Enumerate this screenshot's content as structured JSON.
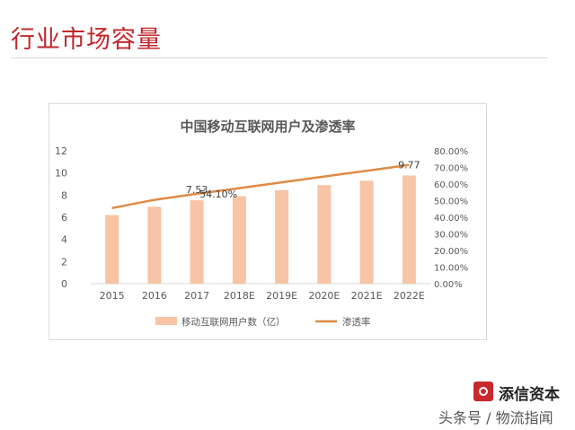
{
  "page": {
    "title": "行业市场容量",
    "brand": "添信资本",
    "watermark": "头条号 / 物流指闻"
  },
  "colors": {
    "title_red": "#c0272d",
    "bar": "#f7c4a5",
    "line": "#e08a45",
    "text": "#595959",
    "axis": "#d9d9d9"
  },
  "chart_data": {
    "type": "bar",
    "title": "中国移动互联网用户及渗透率",
    "categories": [
      "2015",
      "2016",
      "2017",
      "2018E",
      "2019E",
      "2020E",
      "2021E",
      "2022E"
    ],
    "series": [
      {
        "name": "移动互联网用户数（亿）",
        "type": "bar",
        "axis": "left",
        "values": [
          6.2,
          6.95,
          7.53,
          7.9,
          8.45,
          8.9,
          9.3,
          9.77
        ]
      },
      {
        "name": "渗透率",
        "type": "line",
        "axis": "right",
        "values": [
          45.5,
          50.5,
          54.1,
          57.5,
          61.0,
          64.5,
          68.0,
          71.5
        ]
      }
    ],
    "y_left": {
      "min": 0,
      "max": 12,
      "ticks": [
        "0",
        "2",
        "4",
        "6",
        "8",
        "10",
        "12"
      ]
    },
    "y_right": {
      "min": 0,
      "max": 80,
      "ticks": [
        "0.00%",
        "10.00%",
        "20.00%",
        "30.00%",
        "40.00%",
        "50.00%",
        "60.00%",
        "70.00%",
        "80.00%"
      ]
    },
    "annotations": [
      {
        "text": "7.53",
        "category": "2017",
        "value": 7.53,
        "anchor": "bar"
      },
      {
        "text": "54.10%",
        "category": "2017",
        "value": 54.1,
        "anchor": "line"
      },
      {
        "text": "9.77",
        "category": "2022E",
        "value": 9.77,
        "anchor": "bar"
      }
    ],
    "grid": false,
    "legend_position": "bottom"
  }
}
